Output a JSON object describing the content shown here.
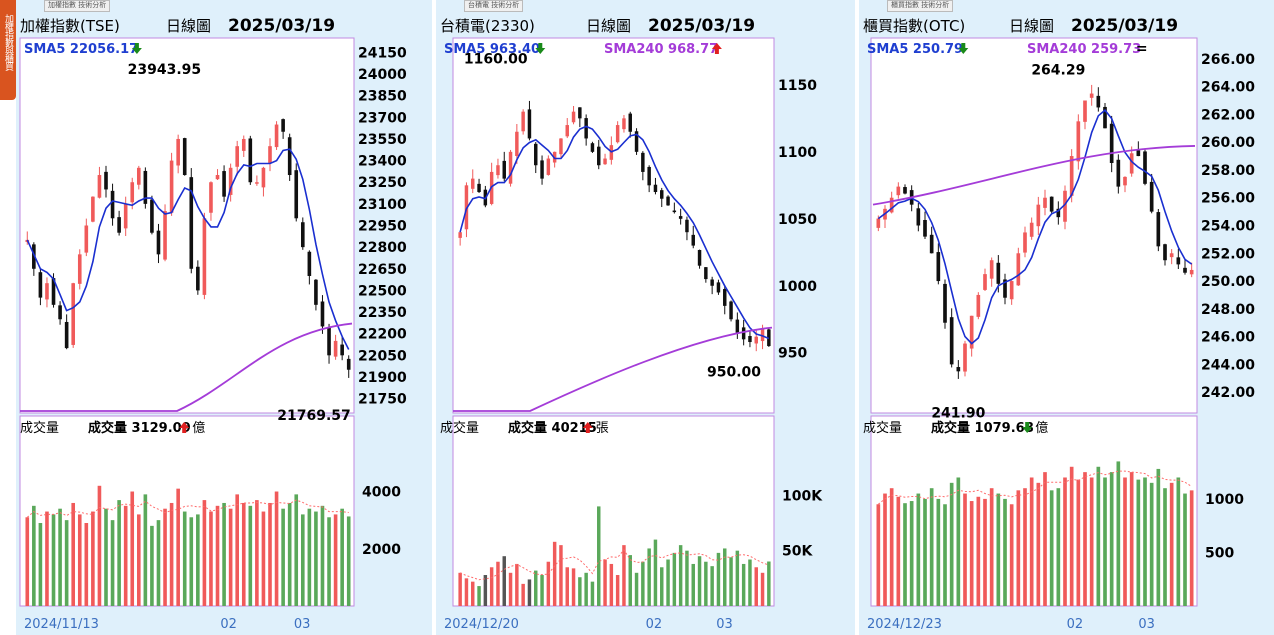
{
  "side_tab_label": "加權指數與櫃買",
  "panels": [
    {
      "tab_label": "加權指數 技術分析",
      "title": "加權指數(TSE)",
      "period": "日線圖",
      "date": "2025/03/19",
      "sma5_label": "SMA5 22056.17",
      "sma5_dir": "down",
      "sma240_label": "",
      "sma240_dir": "",
      "high_label": "23943.95",
      "low_label": "21769.57",
      "volume_caption": "成交量",
      "volume_label": "成交量 3129.09",
      "volume_dir": "up",
      "volume_unit": "億",
      "x_labels": [
        "2024/11/13",
        "02",
        "03"
      ]
    },
    {
      "tab_label": "台積電 技術分析",
      "title": "台積電(2330)",
      "period": "日線圖",
      "date": "2025/03/19",
      "sma5_label": "SMA5 963.40",
      "sma5_dir": "down",
      "sma240_label": "SMA240 968.77",
      "sma240_dir": "up",
      "high_label": "1160.00",
      "low_label": "950.00",
      "volume_caption": "成交量",
      "volume_label": "成交量 40215",
      "volume_dir": "up",
      "volume_unit": "張",
      "x_labels": [
        "2024/12/20",
        "02",
        "03"
      ]
    },
    {
      "tab_label": "櫃買指數 技術分析",
      "title": "櫃買指數(OTC)",
      "period": "日線圖",
      "date": "2025/03/19",
      "sma5_label": "SMA5 250.79",
      "sma5_dir": "down",
      "sma240_label": "SMA240 259.73",
      "sma240_dir": "flat",
      "high_label": "264.29",
      "low_label": "241.90",
      "volume_caption": "成交量",
      "volume_label": "成交量 1079.68",
      "volume_dir": "down",
      "volume_unit": "億",
      "x_labels": [
        "2024/12/23",
        "02",
        "03"
      ]
    }
  ],
  "colors": {
    "up": "#f05a5a",
    "down": "#101010",
    "vol_up": "#f05a5a",
    "vol_down": "#5aa85a",
    "sma5": "#1a2fd0",
    "sma240": "#a43cd8",
    "panel_bg": "#dff0fb",
    "sma5_label": "#1f3fd0",
    "sma240_label": "#a43cd8"
  },
  "chart_data": [
    {
      "type": "candlestick",
      "title": "加權指數(TSE)",
      "price_ticks": [
        24150,
        24000,
        23850,
        23700,
        23550,
        23400,
        23250,
        23100,
        22950,
        22800,
        22650,
        22500,
        22350,
        22200,
        22050,
        21900,
        21750
      ],
      "price_range": [
        21650,
        24250
      ],
      "volume_ticks": [
        4000,
        2000
      ],
      "volume_range": [
        0,
        5800
      ],
      "high": 23943.95,
      "low": 21769.57,
      "sma5_last": 22056.17,
      "close_path": [
        22850,
        22650,
        22450,
        22550,
        22400,
        22300,
        22100,
        22550,
        22750,
        22950,
        23150,
        23300,
        23200,
        23000,
        22900,
        23100,
        23250,
        23350,
        23100,
        22900,
        22750,
        23050,
        23400,
        23550,
        23300,
        22650,
        22500,
        23000,
        23250,
        23300,
        23150,
        23350,
        23500,
        23550,
        23250,
        23250,
        23350,
        23500,
        23650,
        23600,
        23300,
        23000,
        22800,
        22600,
        22400,
        22250,
        22050,
        22150,
        22050,
        21950
      ],
      "volume_path": [
        3100,
        3500,
        2900,
        3300,
        3200,
        3400,
        3000,
        3600,
        3200,
        2900,
        3300,
        4200,
        3400,
        3000,
        3700,
        3500,
        4000,
        3200,
        3900,
        2800,
        3000,
        3400,
        3600,
        4100,
        3300,
        3100,
        3200,
        3700,
        3300,
        3500,
        3600,
        3400,
        3900,
        3600,
        3500,
        3700,
        3300,
        3600,
        4000,
        3400,
        3600,
        3900,
        3200,
        3400,
        3300,
        3500,
        3100,
        3200,
        3400,
        3129
      ]
    },
    {
      "type": "candlestick",
      "title": "台積電(2330)",
      "price_ticks": [
        1150,
        1100,
        1050,
        1000,
        950
      ],
      "price_range": [
        905,
        1185
      ],
      "volume_ticks": [
        100000,
        50000
      ],
      "volume_range": [
        0,
        150000
      ],
      "high": 1160.0,
      "low": 950.0,
      "sma5_last": 963.4,
      "sma240_last": 968.77,
      "close_path": [
        1040,
        1075,
        1080,
        1070,
        1060,
        1085,
        1090,
        1080,
        1100,
        1115,
        1130,
        1110,
        1090,
        1080,
        1095,
        1100,
        1110,
        1120,
        1130,
        1125,
        1110,
        1100,
        1090,
        1095,
        1105,
        1120,
        1125,
        1115,
        1100,
        1085,
        1075,
        1070,
        1065,
        1060,
        1055,
        1050,
        1040,
        1030,
        1015,
        1005,
        1000,
        995,
        985,
        975,
        965,
        960,
        958,
        962,
        968,
        955
      ],
      "volume_path": [
        30000,
        25000,
        22000,
        18000,
        28000,
        35000,
        40000,
        45000,
        30000,
        38000,
        20000,
        24000,
        32000,
        28000,
        40000,
        58000,
        55000,
        35000,
        34000,
        26000,
        30000,
        22000,
        90000,
        42000,
        38000,
        28000,
        55000,
        46000,
        30000,
        40000,
        52000,
        60000,
        35000,
        42000,
        48000,
        55000,
        50000,
        38000,
        45000,
        40000,
        36000,
        48000,
        52000,
        44000,
        50000,
        38000,
        42000,
        35000,
        30000,
        40215
      ]
    },
    {
      "type": "candlestick",
      "title": "櫃買指數(OTC)",
      "price_ticks": [
        266.0,
        264.0,
        262.0,
        260.0,
        258.0,
        256.0,
        254.0,
        252.0,
        250.0,
        248.0,
        246.0,
        244.0,
        242.0
      ],
      "price_range": [
        240.5,
        267.5
      ],
      "volume_ticks": [
        1000,
        500
      ],
      "volume_range": [
        0,
        1550
      ],
      "high": 264.29,
      "low": 241.9,
      "sma5_last": 250.79,
      "sma240_last": 259.73,
      "close_path": [
        254.5,
        255.2,
        256.0,
        256.8,
        256.3,
        255.5,
        254.0,
        253.2,
        252.0,
        250.0,
        247.0,
        244.0,
        243.5,
        245.5,
        247.5,
        249.0,
        250.5,
        251.5,
        249.8,
        248.8,
        250.0,
        252.0,
        253.5,
        254.2,
        255.5,
        256.0,
        255.0,
        254.6,
        256.5,
        259.0,
        261.5,
        263.0,
        263.5,
        262.5,
        261.0,
        258.5,
        256.8,
        257.5,
        259.2,
        259.0,
        257.0,
        255.0,
        252.5,
        251.5,
        252.0,
        251.2,
        250.6,
        250.8
      ],
      "volume_path": [
        950,
        1050,
        1100,
        1020,
        960,
        980,
        1050,
        1000,
        1100,
        1000,
        950,
        1150,
        1200,
        1050,
        980,
        1020,
        1000,
        1100,
        1050,
        1000,
        950,
        1080,
        1100,
        1200,
        1150,
        1250,
        1080,
        1100,
        1200,
        1300,
        1180,
        1250,
        1200,
        1300,
        1200,
        1250,
        1350,
        1200,
        1250,
        1180,
        1200,
        1150,
        1280,
        1100,
        1150,
        1200,
        1050,
        1079.68
      ]
    }
  ]
}
